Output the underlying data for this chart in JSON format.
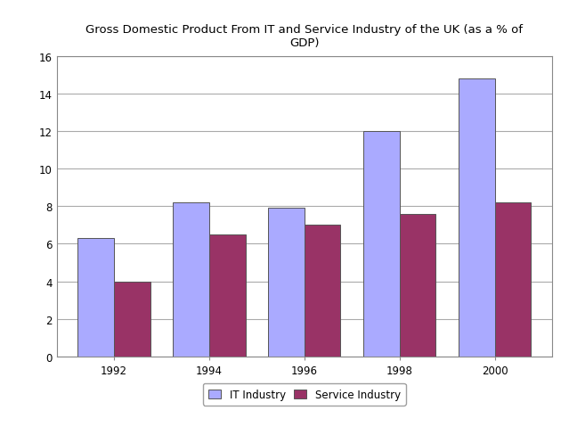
{
  "title": "Gross Domestic Product From IT and Service Industry of the UK (as a % of\nGDP)",
  "years": [
    "1992",
    "1994",
    "1996",
    "1998",
    "2000"
  ],
  "it_industry": [
    6.3,
    8.2,
    7.9,
    12.0,
    14.8
  ],
  "service_industry": [
    4.0,
    6.5,
    7.0,
    7.6,
    8.2
  ],
  "it_color": "#aaaaff",
  "service_color": "#993366",
  "bar_width": 0.38,
  "ylim": [
    0,
    16
  ],
  "yticks": [
    0,
    2,
    4,
    6,
    8,
    10,
    12,
    14,
    16
  ],
  "legend_labels": [
    "IT Industry",
    "Service Industry"
  ],
  "background_color": "#ffffff",
  "grid_color": "#aaaaaa",
  "title_fontsize": 9.5,
  "tick_fontsize": 8.5,
  "legend_fontsize": 8.5
}
